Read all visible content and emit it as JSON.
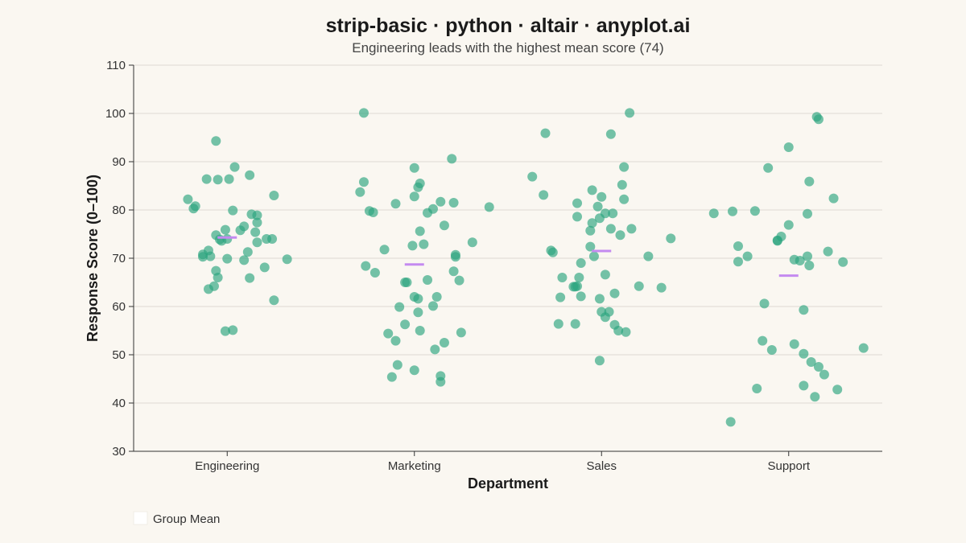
{
  "chart_data": {
    "type": "scatter",
    "title": "strip-basic · python · altair · anyplot.ai",
    "subtitle": "Engineering leads with the highest mean score (74)",
    "xlabel": "Department",
    "ylabel": "Response Score (0–100)",
    "ylim": [
      30,
      110
    ],
    "yticks": [
      "30",
      "40",
      "50",
      "60",
      "70",
      "80",
      "90",
      "100",
      "110"
    ],
    "categories": [
      "Engineering",
      "Marketing",
      "Sales",
      "Support"
    ],
    "grid": true,
    "legend": {
      "position": "bottom-left",
      "label": "Group Mean"
    },
    "colors": {
      "points": "#2BA47E",
      "mean": "#C48AF0",
      "grid": "#DDDAD3",
      "axis": "#333333",
      "background": "#FAF7F1"
    },
    "series": [
      {
        "category": "Engineering",
        "mean": 74.3,
        "points": [
          [
            -0.21,
            82.2
          ],
          [
            -0.18,
            80.3
          ],
          [
            -0.17,
            80.8
          ],
          [
            -0.11,
            86.4
          ],
          [
            -0.06,
            94.3
          ],
          [
            -0.05,
            86.3
          ],
          [
            0.01,
            86.4
          ],
          [
            0.03,
            79.9
          ],
          [
            0.04,
            88.9
          ],
          [
            0.12,
            87.2
          ],
          [
            0.25,
            83.0
          ],
          [
            -0.06,
            74.8
          ],
          [
            -0.04,
            73.9
          ],
          [
            -0.03,
            73.6
          ],
          [
            0.0,
            74.0
          ],
          [
            -0.01,
            75.9
          ],
          [
            0.07,
            75.8
          ],
          [
            0.09,
            76.6
          ],
          [
            0.13,
            79.1
          ],
          [
            0.15,
            75.4
          ],
          [
            0.16,
            78.9
          ],
          [
            0.16,
            77.4
          ],
          [
            0.16,
            73.3
          ],
          [
            0.21,
            74.0
          ],
          [
            0.24,
            74.0
          ],
          [
            -0.13,
            70.3
          ],
          [
            -0.13,
            70.8
          ],
          [
            -0.1,
            71.6
          ],
          [
            -0.09,
            70.4
          ],
          [
            -0.06,
            67.4
          ],
          [
            -0.05,
            66.0
          ],
          [
            0.0,
            69.9
          ],
          [
            0.09,
            69.6
          ],
          [
            0.11,
            71.3
          ],
          [
            0.2,
            68.1
          ],
          [
            0.32,
            69.8
          ],
          [
            -0.1,
            63.6
          ],
          [
            -0.07,
            64.2
          ],
          [
            0.12,
            65.9
          ],
          [
            0.25,
            61.3
          ],
          [
            -0.01,
            54.9
          ],
          [
            0.03,
            55.1
          ]
        ]
      },
      {
        "category": "Marketing",
        "mean": 68.7,
        "points": [
          [
            -0.27,
            100.1
          ],
          [
            0.2,
            90.6
          ],
          [
            -0.27,
            85.8
          ],
          [
            -0.29,
            83.7
          ],
          [
            0.0,
            88.7
          ],
          [
            0.03,
            85.5
          ],
          [
            0.02,
            84.7
          ],
          [
            0.0,
            82.8
          ],
          [
            -0.24,
            79.8
          ],
          [
            -0.22,
            79.5
          ],
          [
            -0.1,
            81.3
          ],
          [
            0.07,
            79.4
          ],
          [
            0.1,
            80.2
          ],
          [
            0.14,
            81.7
          ],
          [
            0.21,
            81.5
          ],
          [
            0.4,
            80.6
          ],
          [
            0.03,
            75.6
          ],
          [
            0.16,
            76.8
          ],
          [
            -0.16,
            71.8
          ],
          [
            -0.01,
            72.6
          ],
          [
            0.05,
            72.9
          ],
          [
            0.22,
            70.3
          ],
          [
            0.22,
            70.7
          ],
          [
            0.31,
            73.3
          ],
          [
            -0.26,
            68.4
          ],
          [
            -0.21,
            67.0
          ],
          [
            0.21,
            67.3
          ],
          [
            0.24,
            65.4
          ],
          [
            -0.05,
            65.0
          ],
          [
            -0.04,
            65.0
          ],
          [
            0.0,
            62.0
          ],
          [
            0.02,
            61.6
          ],
          [
            0.1,
            60.1
          ],
          [
            0.12,
            62.0
          ],
          [
            -0.08,
            59.9
          ],
          [
            0.02,
            58.8
          ],
          [
            0.07,
            65.5
          ],
          [
            -0.14,
            54.4
          ],
          [
            -0.1,
            52.9
          ],
          [
            -0.05,
            56.3
          ],
          [
            0.03,
            55.0
          ],
          [
            0.16,
            52.5
          ],
          [
            0.25,
            54.6
          ],
          [
            0.11,
            51.1
          ],
          [
            -0.09,
            47.9
          ],
          [
            -0.12,
            45.4
          ],
          [
            0.0,
            46.8
          ],
          [
            0.14,
            45.6
          ],
          [
            0.14,
            44.4
          ]
        ]
      },
      {
        "category": "Sales",
        "mean": 71.5,
        "points": [
          [
            -0.3,
            95.9
          ],
          [
            0.05,
            95.7
          ],
          [
            0.15,
            100.1
          ],
          [
            -0.37,
            86.9
          ],
          [
            -0.31,
            83.1
          ],
          [
            0.12,
            88.9
          ],
          [
            0.11,
            85.2
          ],
          [
            -0.05,
            84.1
          ],
          [
            0.0,
            82.7
          ],
          [
            0.12,
            82.2
          ],
          [
            -0.13,
            81.4
          ],
          [
            -0.02,
            80.7
          ],
          [
            0.02,
            79.3
          ],
          [
            -0.13,
            78.6
          ],
          [
            -0.05,
            77.3
          ],
          [
            -0.01,
            78.3
          ],
          [
            0.06,
            79.3
          ],
          [
            0.05,
            76.1
          ],
          [
            0.1,
            74.8
          ],
          [
            0.16,
            76.1
          ],
          [
            -0.06,
            75.7
          ],
          [
            -0.06,
            72.4
          ],
          [
            -0.04,
            70.4
          ],
          [
            -0.27,
            71.6
          ],
          [
            -0.26,
            71.2
          ],
          [
            -0.11,
            69.0
          ],
          [
            0.25,
            70.4
          ],
          [
            0.37,
            74.1
          ],
          [
            -0.21,
            66.0
          ],
          [
            -0.15,
            64.1
          ],
          [
            -0.14,
            64.1
          ],
          [
            -0.13,
            64.2
          ],
          [
            -0.12,
            66.0
          ],
          [
            0.02,
            66.6
          ],
          [
            0.2,
            64.2
          ],
          [
            0.32,
            63.9
          ],
          [
            -0.22,
            61.9
          ],
          [
            -0.11,
            62.1
          ],
          [
            -0.01,
            61.6
          ],
          [
            0.07,
            62.7
          ],
          [
            0.0,
            58.9
          ],
          [
            0.02,
            57.8
          ],
          [
            0.04,
            58.9
          ],
          [
            -0.23,
            56.4
          ],
          [
            -0.14,
            56.4
          ],
          [
            0.07,
            56.2
          ],
          [
            0.09,
            55.0
          ],
          [
            0.13,
            54.7
          ],
          [
            -0.01,
            48.8
          ]
        ]
      },
      {
        "category": "Support",
        "mean": 66.4,
        "points": [
          [
            0.15,
            99.3
          ],
          [
            0.16,
            98.8
          ],
          [
            0.0,
            93.0
          ],
          [
            -0.11,
            88.7
          ],
          [
            0.11,
            85.9
          ],
          [
            0.24,
            82.4
          ],
          [
            -0.4,
            79.3
          ],
          [
            -0.3,
            79.7
          ],
          [
            -0.18,
            79.8
          ],
          [
            0.1,
            79.2
          ],
          [
            0.0,
            76.9
          ],
          [
            -0.04,
            74.5
          ],
          [
            -0.06,
            73.6
          ],
          [
            -0.06,
            73.7
          ],
          [
            -0.27,
            72.5
          ],
          [
            -0.22,
            70.4
          ],
          [
            -0.27,
            69.3
          ],
          [
            0.03,
            69.7
          ],
          [
            0.06,
            69.5
          ],
          [
            0.1,
            70.4
          ],
          [
            0.11,
            68.5
          ],
          [
            0.21,
            71.4
          ],
          [
            0.29,
            69.2
          ],
          [
            -0.13,
            60.6
          ],
          [
            0.08,
            59.3
          ],
          [
            -0.14,
            52.9
          ],
          [
            -0.09,
            51.0
          ],
          [
            0.03,
            52.2
          ],
          [
            0.08,
            50.2
          ],
          [
            0.12,
            48.5
          ],
          [
            0.16,
            47.5
          ],
          [
            0.19,
            45.9
          ],
          [
            -0.17,
            43.0
          ],
          [
            0.08,
            43.6
          ],
          [
            0.14,
            41.3
          ],
          [
            0.26,
            42.8
          ],
          [
            0.4,
            51.4
          ],
          [
            -0.31,
            36.1
          ]
        ]
      }
    ]
  }
}
